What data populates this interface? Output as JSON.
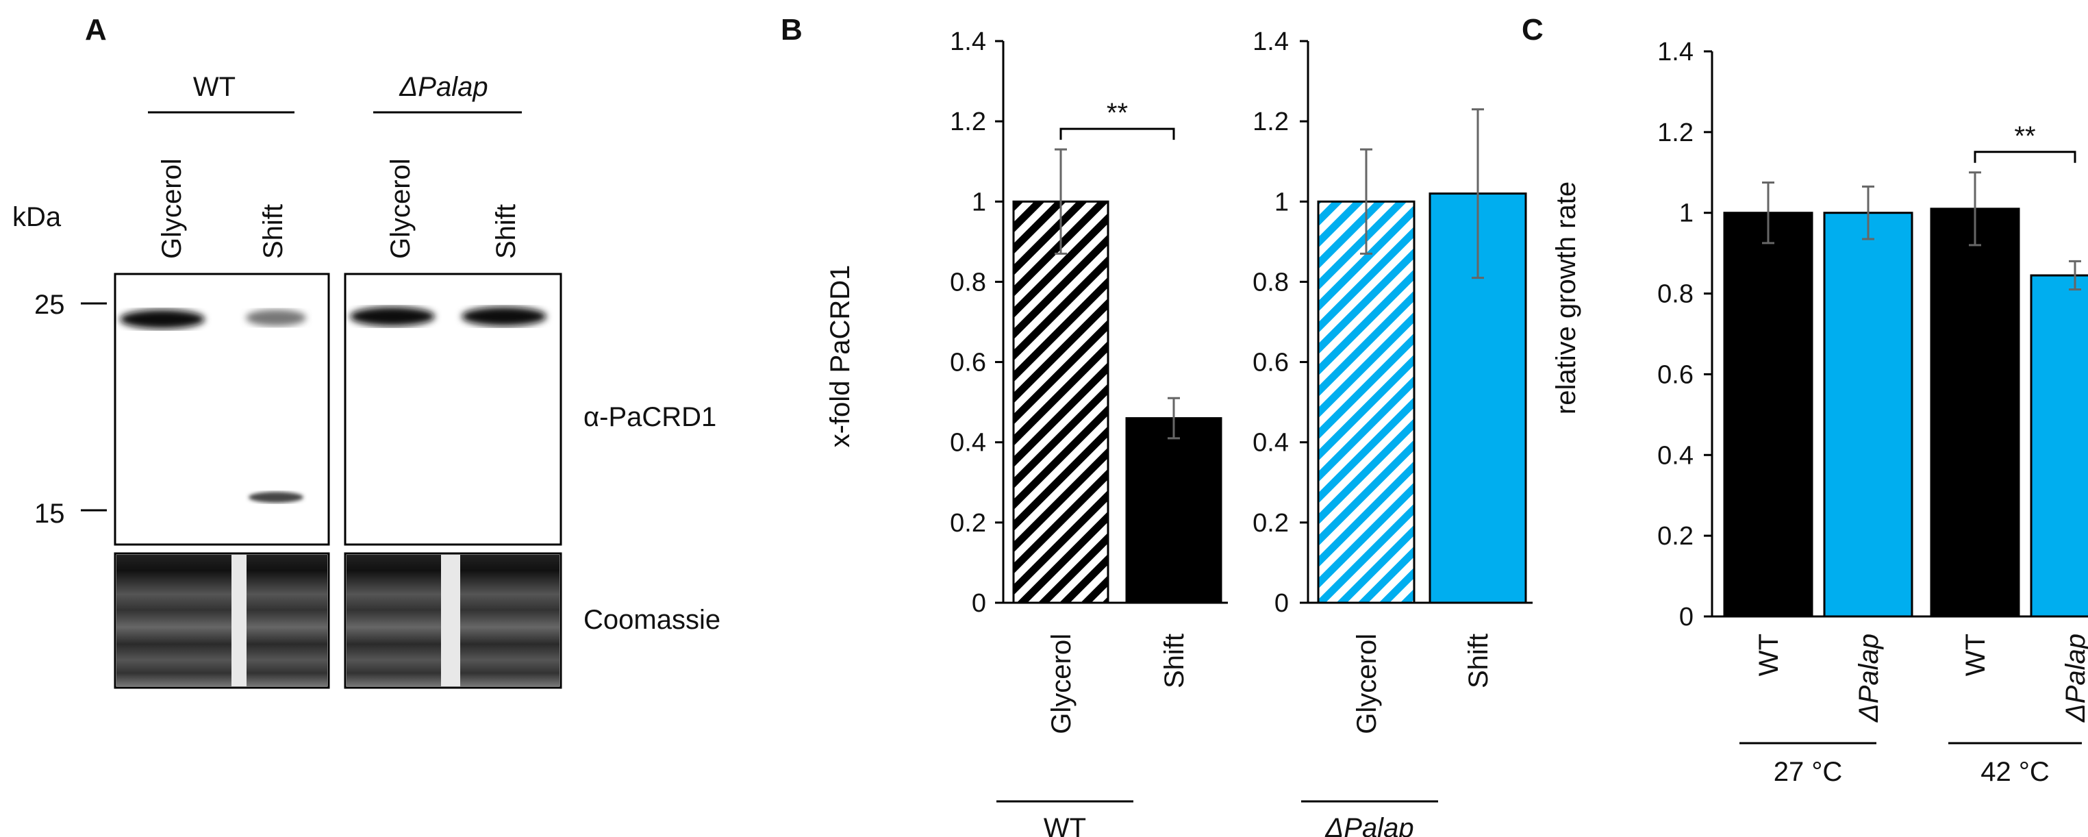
{
  "panel_a": {
    "letter": "A",
    "groups": [
      {
        "name": "WT",
        "italic": false,
        "lanes": [
          "Glycerol",
          "Shift"
        ]
      },
      {
        "name": "ΔPalap",
        "italic": true,
        "lanes": [
          "Glycerol",
          "Shift"
        ]
      }
    ],
    "unit_label": "kDa",
    "markers": [
      "25",
      "15"
    ],
    "blot_label": "α-PaCRD1",
    "loading_label": "Coomassie"
  },
  "chart_data": [
    {
      "id": "B-left",
      "panel_letter": "B",
      "type": "bar",
      "ylabel": "x-fold PaCRD1",
      "ylim": [
        0,
        1.4
      ],
      "yticks": [
        "0",
        "0.2",
        "0.4",
        "0.6",
        "0.8",
        "1",
        "1.2",
        "1.4"
      ],
      "categories": [
        "Glycerol",
        "Shift"
      ],
      "values": [
        1.0,
        0.46
      ],
      "errors": [
        0.13,
        0.05
      ],
      "fills": [
        "hatch-black",
        "#000000"
      ],
      "group_label": "WT",
      "group_italic": false,
      "significance": "**"
    },
    {
      "id": "B-right",
      "type": "bar",
      "ylim": [
        0,
        1.4
      ],
      "yticks": [
        "0",
        "0.2",
        "0.4",
        "0.6",
        "0.8",
        "1",
        "1.2",
        "1.4"
      ],
      "categories": [
        "Glycerol",
        "Shift"
      ],
      "values": [
        1.0,
        1.02
      ],
      "errors": [
        0.13,
        0.21
      ],
      "fills": [
        "hatch-blue",
        "#00aeef"
      ],
      "group_label": "ΔPalap",
      "group_italic": true
    },
    {
      "id": "C",
      "panel_letter": "C",
      "type": "bar",
      "ylabel": "relative growth rate",
      "ylim": [
        0,
        1.4
      ],
      "yticks": [
        "0",
        "0.2",
        "0.4",
        "0.6",
        "0.8",
        "1",
        "1.2",
        "1.4"
      ],
      "categories": [
        "WT",
        "ΔPalap",
        "WT",
        "ΔPalap"
      ],
      "categories_italic": [
        false,
        true,
        false,
        true
      ],
      "values": [
        1.0,
        1.0,
        1.01,
        0.845
      ],
      "errors": [
        0.075,
        0.065,
        0.09,
        0.035
      ],
      "fills": [
        "#000000",
        "#00aeef",
        "#000000",
        "#00aeef"
      ],
      "groups": [
        "27 °C",
        "42 °C"
      ],
      "significance": "**"
    }
  ],
  "colors": {
    "blue": "#00aeef",
    "black": "#000000"
  }
}
